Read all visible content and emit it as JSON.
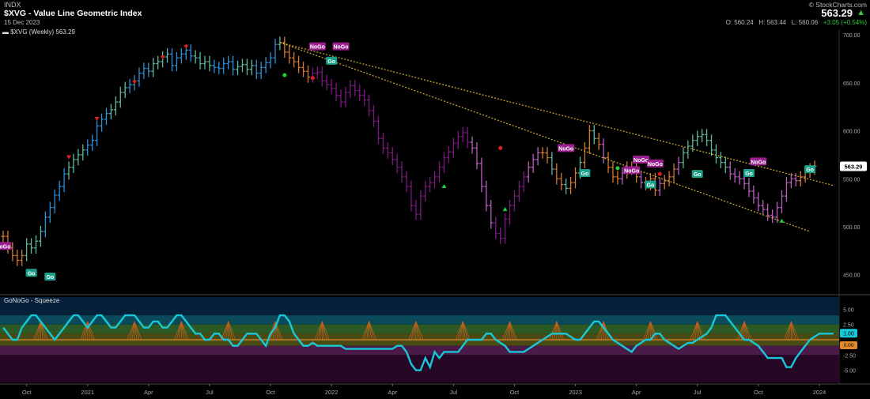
{
  "header": {
    "exchange": "INDX",
    "symbol_title": "$XVG - Value Line Geometric Index",
    "date": "15 Dec 2023",
    "brand": "© StockCharts.com",
    "last_price": "563.29",
    "ohlc": {
      "open_label": "O:",
      "open": "560.24",
      "high_label": "H:",
      "high": "563.44",
      "low_label": "L:",
      "low": "560.06",
      "change": "+3.05 (+0.54%)"
    }
  },
  "price_panel": {
    "legend": "$XVG (Weekly) 563.29",
    "last_tag": "563.29",
    "y_ticks": [
      "700.00",
      "650.00",
      "600.00",
      "550.00",
      "500.00",
      "450.00"
    ]
  },
  "indicator_panel": {
    "legend": "GoNoGo - Squeeze",
    "y_ticks": [
      "5.00",
      "2.50",
      "-2.50",
      "-5.00"
    ],
    "last_tag": "1.00",
    "zero_tag": "0.00"
  },
  "x_axis": {
    "labels": [
      "Oct",
      "2021",
      "Apr",
      "Jul",
      "Oct",
      "2022",
      "Apr",
      "Jul",
      "Oct",
      "2023",
      "Apr",
      "Jul",
      "Oct",
      "2024"
    ]
  },
  "badges": {
    "go": "Go",
    "nogo": "NoGo"
  },
  "colors": {
    "go_blue": "#2f8fd8",
    "go_aqua": "#5fb8a0",
    "nogo_purple": "#b85fc0",
    "nogo_dark": "#7a1a80",
    "amber": "#d8782a",
    "trend": "#d4b030",
    "squeeze": "#18c8d8",
    "zero": "#e08a30"
  },
  "chart_data": [
    {
      "type": "line",
      "title": "$XVG - Value Line Geometric Index",
      "series": [
        {
          "name": "$XVG (Weekly)",
          "values": [
            490,
            478,
            470,
            465,
            470,
            482,
            478,
            485,
            495,
            510,
            520,
            533,
            542,
            555,
            562,
            570,
            575,
            580,
            585,
            590,
            605,
            612,
            618,
            622,
            630,
            640,
            645,
            648,
            652,
            660,
            665,
            662,
            670,
            672,
            677,
            680,
            668,
            676,
            680,
            684,
            678,
            676,
            670,
            672,
            668,
            666,
            665,
            670,
            672,
            664,
            667,
            669,
            664,
            668,
            660,
            666,
            671,
            676,
            690,
            692,
            682,
            676,
            672,
            666,
            662,
            656,
            660,
            661,
            652,
            648,
            644,
            637,
            630,
            640,
            647,
            642,
            637,
            632,
            621,
            610,
            592,
            582,
            577,
            570,
            562,
            552,
            542,
            522,
            513,
            532,
            542,
            546,
            552,
            562,
            572,
            578,
            587,
            594,
            598,
            588,
            582,
            566,
            542,
            522,
            504,
            493,
            488,
            508,
            522,
            532,
            542,
            552,
            562,
            570,
            577,
            577,
            572,
            560,
            550,
            544,
            540,
            546,
            556,
            567,
            582,
            600,
            592,
            586,
            572,
            562,
            552,
            550,
            556,
            562,
            560,
            552,
            546,
            544,
            550,
            538,
            545,
            548,
            552,
            560,
            567,
            577,
            584,
            590,
            594,
            596,
            590,
            580,
            572,
            567,
            562,
            555,
            552,
            550,
            545,
            537,
            530,
            522,
            518,
            512,
            510,
            520,
            532,
            546,
            550,
            548,
            552,
            557,
            560,
            563
          ]
        }
      ],
      "trend_lines": [
        {
          "from": [
            59,
            692
          ],
          "to": [
            177,
            543
          ]
        },
        {
          "from": [
            59,
            692
          ],
          "to": [
            172,
            495
          ]
        }
      ],
      "ylim": [
        430,
        705
      ]
    },
    {
      "type": "line",
      "title": "GoNoGo - Squeeze",
      "series": [
        {
          "name": "GoNoGo Squeeze",
          "values": [
            2,
            1,
            0,
            0,
            2,
            3,
            4,
            4,
            3,
            2,
            1,
            0,
            1,
            2,
            3,
            4,
            4,
            3,
            2,
            3,
            4,
            4,
            3,
            2,
            2,
            3,
            4,
            4,
            4,
            3,
            2,
            2,
            3,
            3,
            2,
            2,
            3,
            4,
            4,
            3,
            2,
            1,
            1,
            0,
            0,
            1,
            1,
            0,
            0,
            -1,
            -1,
            0,
            1,
            1,
            1,
            0,
            -1,
            1,
            2,
            4,
            4,
            3,
            1,
            0,
            -1,
            -1,
            -0.5,
            -1,
            -1,
            -1,
            -1,
            -1,
            -1,
            -1.5,
            -1.5,
            -1.5,
            -1.5,
            -1.5,
            -1.5,
            -1.5,
            -1.5,
            -1.5,
            -1.5,
            -1.5,
            -1,
            -1,
            -2,
            -4,
            -5,
            -5,
            -3,
            -4.5,
            -2,
            -3,
            -2,
            -2,
            -2,
            -2,
            -1,
            0,
            0,
            0,
            0,
            1,
            1,
            0,
            -0.5,
            -1,
            -2,
            -2,
            -2,
            -2,
            -1.5,
            -1,
            -0.5,
            0,
            0.5,
            1,
            1,
            1,
            1,
            0.5,
            0,
            0,
            1,
            2,
            3,
            3,
            2,
            1,
            0,
            -0.5,
            -1,
            -1.5,
            -2,
            -1,
            -0.5,
            0,
            0,
            1,
            1,
            0,
            -0.5,
            -1,
            -1.5,
            -1,
            -0.5,
            -0.5,
            0,
            0.5,
            1,
            2,
            4,
            4,
            4,
            3,
            2,
            1,
            0,
            0,
            -0.5,
            -1,
            -2,
            -3,
            -3,
            -3,
            -3,
            -4.5,
            -4.5,
            -3,
            -2,
            -1,
            0,
            0.5,
            1,
            1,
            1,
            1
          ]
        }
      ],
      "ylim": [
        -7,
        7
      ],
      "yticks": [
        5.0,
        2.5,
        -2.5,
        -5.0
      ]
    }
  ]
}
